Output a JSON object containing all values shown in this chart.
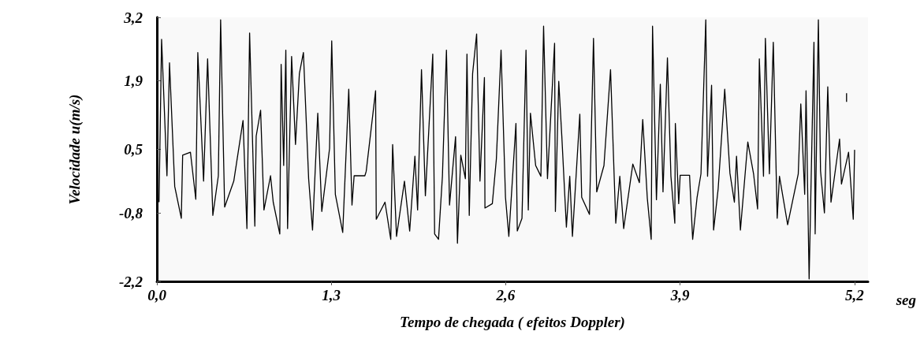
{
  "chart_data": {
    "type": "line",
    "xlabel": "Tempo de chegada ( efeitos Doppler)",
    "ylabel": "Velocidade u(m/s)",
    "annotations": [
      "seg"
    ],
    "xlim": [
      0,
      5.3
    ],
    "ylim": [
      -2.2,
      3.2
    ],
    "xticks": [
      {
        "value": 0,
        "label": "0,0"
      },
      {
        "value": 1.3,
        "label": "1,3"
      },
      {
        "value": 2.6,
        "label": "2,6"
      },
      {
        "value": 3.9,
        "label": "3,9"
      },
      {
        "value": 5.2,
        "label": "5,2"
      }
    ],
    "yticks": [
      {
        "value": -2.2,
        "label": "-2,2"
      },
      {
        "value": -0.8,
        "label": "-0,8"
      },
      {
        "value": 0.5,
        "label": "0,5"
      },
      {
        "value": 1.9,
        "label": "1,9"
      },
      {
        "value": 3.2,
        "label": "3,2"
      }
    ],
    "grid": false,
    "marker": "none",
    "line_style": "solid",
    "series": [
      {
        "color": "#000000",
        "x": [
          0.016,
          0.035,
          0.075,
          0.094,
          0.133,
          0.182,
          0.192,
          0.25,
          0.29,
          0.305,
          0.348,
          0.378,
          0.417,
          0.458,
          0.475,
          0.505,
          0.573,
          0.642,
          0.671,
          0.691,
          0.73,
          0.74,
          0.773,
          0.798,
          0.847,
          0.867,
          0.916,
          0.926,
          0.945,
          0.961,
          0.974,
          1.004,
          1.033,
          1.062,
          1.092,
          1.131,
          1.16,
          1.199,
          1.229,
          1.287,
          1.303,
          1.33,
          1.385,
          1.43,
          1.454,
          1.47,
          1.55,
          1.56,
          1.63,
          1.635,
          1.7,
          1.743,
          1.757,
          1.786,
          1.845,
          1.884,
          1.923,
          1.943,
          1.972,
          2.001,
          2.056,
          2.07,
          2.099,
          2.128,
          2.158,
          2.181,
          2.226,
          2.24,
          2.265,
          2.299,
          2.311,
          2.328,
          2.353,
          2.383,
          2.408,
          2.441,
          2.445,
          2.5,
          2.53,
          2.565,
          2.598,
          2.623,
          2.676,
          2.686,
          2.721,
          2.751,
          2.768,
          2.784,
          2.823,
          2.862,
          2.882,
          2.911,
          2.964,
          2.97,
          2.995,
          3.018,
          3.052,
          3.077,
          3.097,
          3.152,
          3.166,
          3.224,
          3.254,
          3.278,
          3.332,
          3.381,
          3.42,
          3.45,
          3.479,
          3.547,
          3.596,
          3.621,
          3.655,
          3.684,
          3.694,
          3.723,
          3.752,
          3.772,
          3.805,
          3.831,
          3.86,
          3.864,
          3.889,
          3.9,
          3.97,
          3.993,
          4.026,
          4.055,
          4.091,
          4.104,
          4.134,
          4.149,
          4.183,
          4.232,
          4.271,
          4.304,
          4.32,
          4.349,
          4.404,
          4.447,
          4.477,
          4.49,
          4.521,
          4.535,
          4.565,
          4.594,
          4.623,
          4.64,
          4.701,
          4.78,
          4.799,
          4.828,
          4.838,
          4.861,
          4.897,
          4.906,
          4.93,
          4.946,
          4.975,
          5.0,
          5.024,
          5.088,
          5.102,
          5.155,
          5.19,
          5.2
        ],
        "values": [
          -0.58,
          2.75,
          -0.04,
          2.27,
          -0.26,
          -0.91,
          0.38,
          0.44,
          -0.52,
          2.48,
          -0.15,
          2.35,
          -0.85,
          -0.04,
          3.15,
          -0.68,
          -0.15,
          1.09,
          -1.12,
          2.88,
          -1.07,
          0.77,
          1.3,
          -0.74,
          -0.04,
          -0.58,
          -1.23,
          2.24,
          0.17,
          2.53,
          -1.12,
          2.4,
          0.6,
          2.05,
          2.48,
          -0.1,
          -1.15,
          1.24,
          -0.77,
          0.52,
          2.72,
          -0.42,
          -1.2,
          1.73,
          -0.64,
          -0.04,
          -0.04,
          0.05,
          1.7,
          -0.93,
          -0.58,
          -1.34,
          0.6,
          -1.28,
          -0.15,
          -1.17,
          0.36,
          -0.74,
          2.13,
          -0.45,
          2.45,
          -1.23,
          -1.34,
          -0.05,
          2.53,
          -0.64,
          0.76,
          -1.42,
          0.38,
          -0.1,
          2.45,
          -0.85,
          2.05,
          2.86,
          -0.15,
          1.97,
          -0.7,
          -0.61,
          0.3,
          2.53,
          -0.48,
          -1.28,
          1.03,
          -1.17,
          -0.91,
          2.53,
          -0.74,
          1.24,
          0.17,
          -0.05,
          3.02,
          -0.1,
          2.67,
          -0.77,
          1.89,
          0.76,
          -1.09,
          -0.05,
          -1.28,
          1.22,
          -0.48,
          -0.83,
          2.77,
          -0.37,
          0.17,
          2.13,
          -1.01,
          -0.05,
          -1.12,
          0.2,
          -0.18,
          1.11,
          -0.5,
          -1.34,
          3.02,
          -0.53,
          1.83,
          -0.37,
          2.37,
          -0.05,
          -1.01,
          1.03,
          -0.61,
          -0.03,
          -0.03,
          -1.34,
          -0.48,
          0.0,
          3.15,
          -0.05,
          1.81,
          -1.15,
          -0.31,
          1.73,
          0.01,
          -0.58,
          0.36,
          -1.15,
          0.65,
          0.0,
          -0.72,
          2.35,
          -0.05,
          2.77,
          0.0,
          2.69,
          -0.91,
          -0.05,
          -1.04,
          0.0,
          1.43,
          -0.42,
          1.7,
          -2.15,
          2.69,
          -1.23,
          3.15,
          0.06,
          -0.8,
          1.78,
          -0.58,
          0.71,
          -0.21,
          0.44,
          -0.93,
          0.49
        ]
      },
      {
        "color": "#000000",
        "x": [
          5.14,
          5.14
        ],
        "values": [
          1.65,
          1.47
        ]
      }
    ]
  }
}
